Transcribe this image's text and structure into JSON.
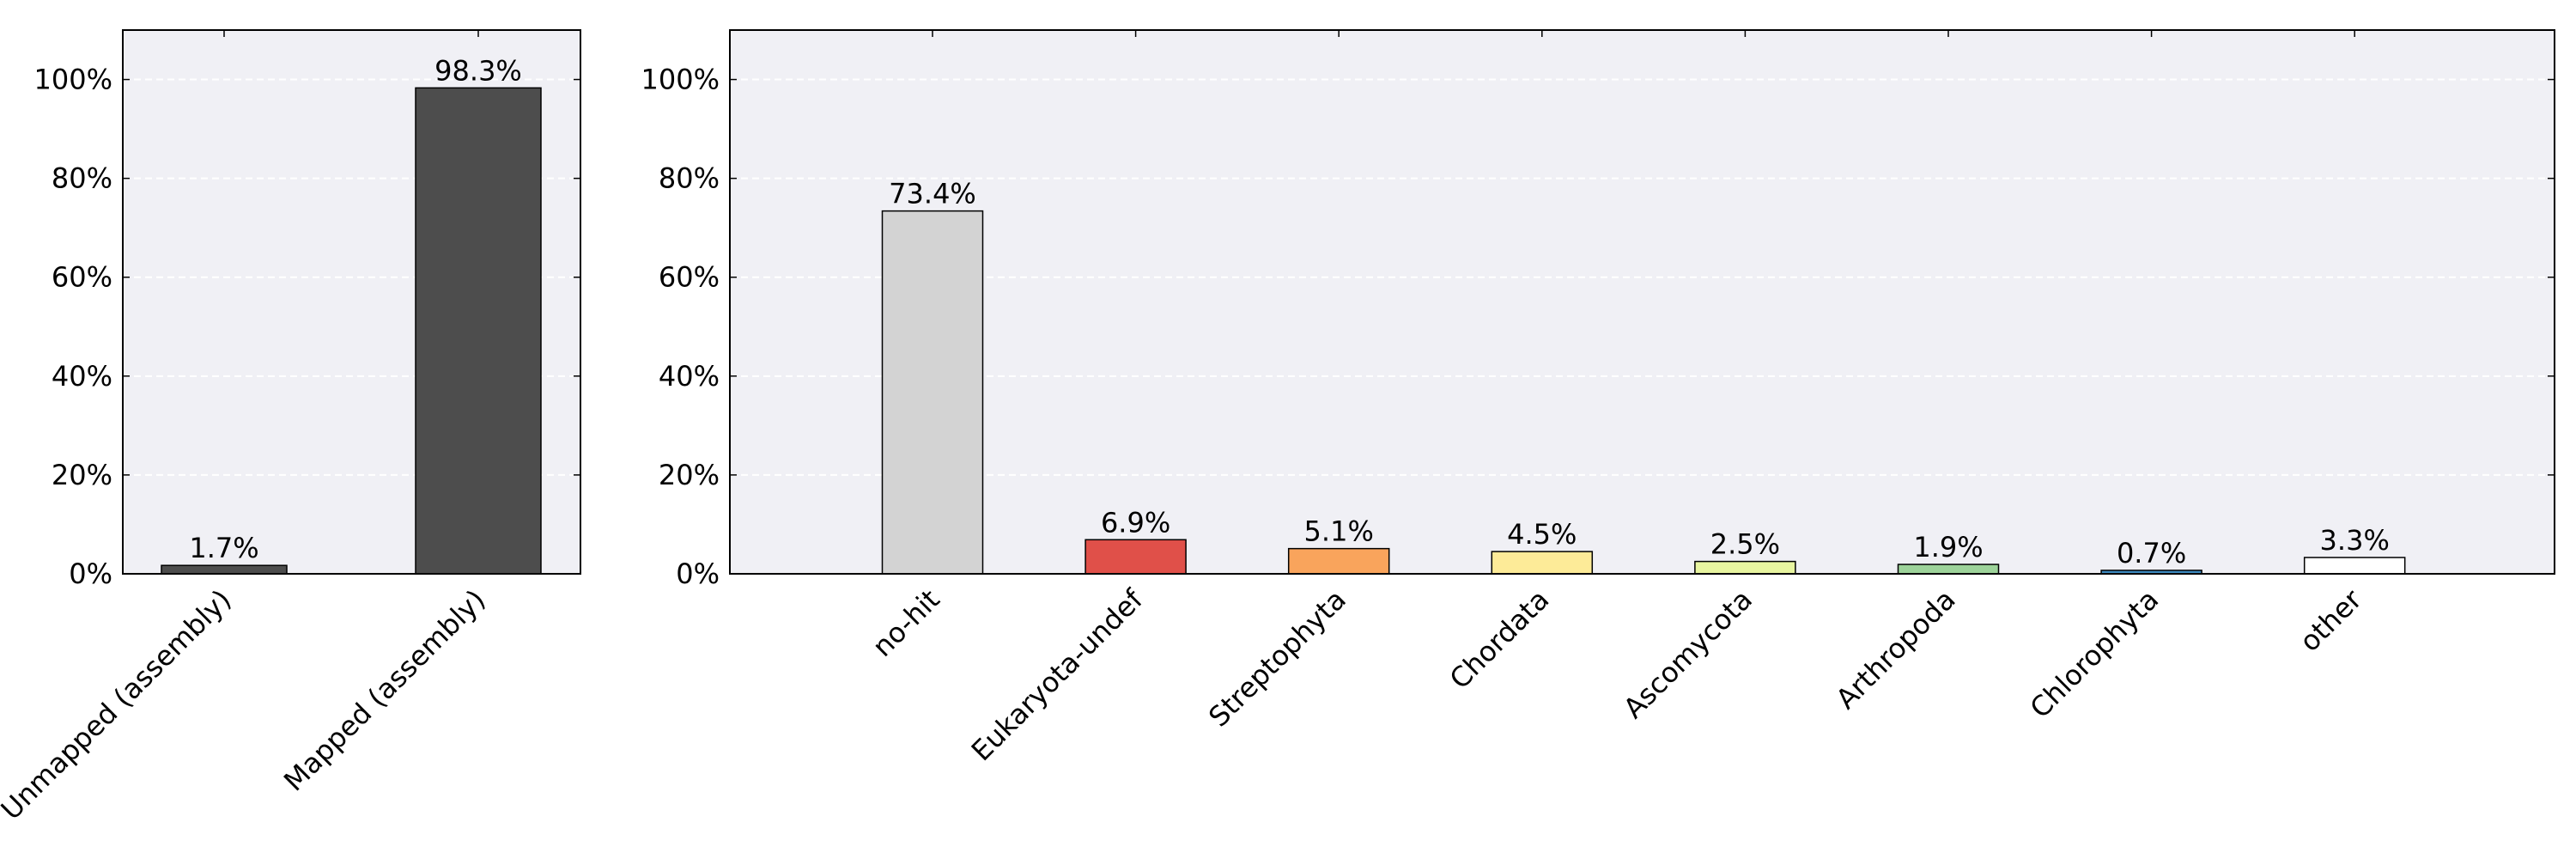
{
  "chart_data": [
    {
      "type": "bar",
      "categories": [
        "Unmapped (assembly)",
        "Mapped (assembly)"
      ],
      "values": [
        1.7,
        98.3
      ],
      "value_labels": [
        "1.7%",
        "98.3%"
      ],
      "colors": [
        "#4d4d4d",
        "#4d4d4d"
      ],
      "yticks": [
        "0%",
        "20%",
        "40%",
        "60%",
        "80%",
        "100%"
      ],
      "ylim": [
        0,
        110
      ],
      "grid": true,
      "background": "#f0f0f5"
    },
    {
      "type": "bar",
      "categories": [
        "no-hit",
        "Eukaryota-undef",
        "Streptophyta",
        "Chordata",
        "Ascomycota",
        "Arthropoda",
        "Chlorophyta",
        "other"
      ],
      "values": [
        73.4,
        6.9,
        5.1,
        4.5,
        2.5,
        1.9,
        0.7,
        3.3
      ],
      "value_labels": [
        "73.4%",
        "6.9%",
        "5.1%",
        "4.5%",
        "2.5%",
        "1.9%",
        "0.7%",
        "3.3%"
      ],
      "colors": [
        "#d3d3d3",
        "#e05049",
        "#f9a45c",
        "#fdeb98",
        "#e8f5a0",
        "#9dd39a",
        "#3d8ac0",
        "#ffffff"
      ],
      "yticks": [
        "0%",
        "20%",
        "40%",
        "60%",
        "80%",
        "100%"
      ],
      "ylim": [
        0,
        110
      ],
      "grid": true,
      "background": "#f0f0f5"
    }
  ]
}
